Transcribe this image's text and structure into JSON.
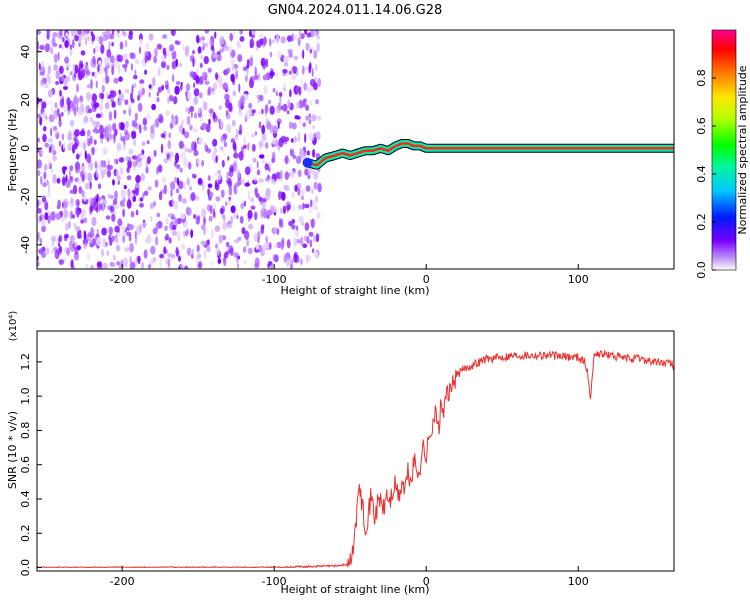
{
  "title": "GN04.2024.011.14.06.G28",
  "chart_data": [
    {
      "type": "heatmap",
      "title": "",
      "xlabel": "Height of straight line (km)",
      "ylabel": "Frequency (Hz)",
      "xlim": [
        -256,
        163
      ],
      "ylim": [
        -50,
        49
      ],
      "xticks": [
        "-200",
        "-100",
        "0",
        "100"
      ],
      "yticks": [
        "-40",
        "-20",
        "0",
        "20",
        "40"
      ],
      "noise_region_x": [
        -256,
        -70
      ],
      "signal_track": {
        "x": [
          -78,
          -72,
          -66,
          -60,
          -55,
          -50,
          -45,
          -40,
          -35,
          -30,
          -25,
          -20,
          -16,
          -12,
          -8,
          -4,
          0,
          4,
          8,
          10,
          163
        ],
        "y": [
          -6,
          -7,
          -4,
          -3,
          -2,
          -3,
          -2,
          -1,
          -1,
          0,
          -1,
          1,
          2,
          2,
          1,
          1,
          0,
          0,
          0,
          0,
          0
        ]
      },
      "colorbar": {
        "label": "Normalized spectral amplitude",
        "ticks": [
          "0.0",
          "0.2",
          "0.4",
          "0.6",
          "0.8"
        ],
        "range": [
          0,
          1
        ]
      }
    },
    {
      "type": "line",
      "title": "",
      "xlabel": "Height of straight line (km)",
      "ylabel": "SNR (10 * v/v)",
      "yscale_note": "(x10⁴)",
      "xlim": [
        -256,
        163
      ],
      "ylim": [
        -0.02,
        1.38
      ],
      "xticks": [
        "-200",
        "-100",
        "0",
        "100"
      ],
      "yticks": [
        "0.0",
        "0.2",
        "0.4",
        "0.6",
        "0.8",
        "1.0",
        "1.2"
      ],
      "color": "#e8312f",
      "series": [
        {
          "x": [
            -256,
            -200,
            -150,
            -100,
            -60,
            -50,
            -48,
            -46,
            -44,
            -42,
            -40,
            -38,
            -36,
            -34,
            -32,
            -30,
            -28,
            -26,
            -24,
            -22,
            -20,
            -18,
            -16,
            -14,
            -12,
            -10,
            -8,
            -6,
            -4,
            -2,
            0,
            2,
            4,
            6,
            8,
            10,
            12,
            14,
            16,
            18,
            20,
            25,
            30,
            35,
            40,
            45,
            50,
            60,
            70,
            80,
            90,
            100,
            104,
            106,
            108,
            110,
            112,
            120,
            130,
            140,
            150,
            160,
            163
          ],
          "y": [
            0.0,
            0.0,
            0.0,
            0.0,
            0.01,
            0.02,
            0.12,
            0.3,
            0.45,
            0.38,
            0.25,
            0.32,
            0.42,
            0.3,
            0.36,
            0.4,
            0.33,
            0.43,
            0.38,
            0.44,
            0.48,
            0.4,
            0.5,
            0.45,
            0.55,
            0.5,
            0.62,
            0.55,
            0.6,
            0.7,
            0.65,
            0.75,
            0.85,
            0.9,
            0.8,
            0.95,
            0.9,
            1.05,
            1.0,
            1.1,
            1.12,
            1.16,
            1.18,
            1.2,
            1.22,
            1.22,
            1.23,
            1.24,
            1.24,
            1.24,
            1.23,
            1.23,
            1.2,
            1.15,
            0.97,
            1.22,
            1.25,
            1.24,
            1.22,
            1.22,
            1.2,
            1.19,
            1.18
          ]
        }
      ]
    }
  ]
}
